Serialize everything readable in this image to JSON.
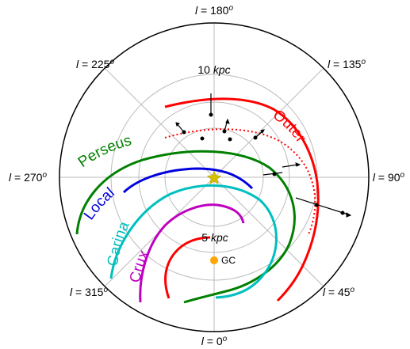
{
  "diagram": {
    "colors": {
      "outer": "#ff0000",
      "perseus": "#008000",
      "local": "#0000dd",
      "carina": "#00bfbf",
      "crux": "#bf00bf",
      "sun": "#d4c000",
      "gc": "#ffa500",
      "grid": "#bbbbbb",
      "frame": "#000000"
    },
    "longitude_labels": {
      "l0": {
        "prefix": "l",
        "value": " = 0",
        "sup": "o"
      },
      "l45": {
        "prefix": "l",
        "value": " = 45",
        "sup": "o"
      },
      "l90": {
        "prefix": "l",
        "value": " = 90",
        "sup": "o"
      },
      "l135": {
        "prefix": "l",
        "value": " = 135",
        "sup": "o"
      },
      "l180": {
        "prefix": "l",
        "value": " = 180",
        "sup": "o"
      },
      "l225": {
        "prefix": "l",
        "value": " = 225",
        "sup": "o"
      },
      "l270": {
        "prefix": "l",
        "value": " = 270",
        "sup": "o"
      },
      "l315": {
        "prefix": "l",
        "value": " = 315",
        "sup": "o"
      }
    },
    "distance_labels": {
      "r10": {
        "num": "10 ",
        "unit": "kpc"
      },
      "r5": {
        "num": "5 ",
        "unit": "kpc"
      }
    },
    "arm_labels": {
      "outer": "Outer",
      "perseus": "Perseus",
      "local": "Local",
      "carina": "Carina",
      "crux": "Crux"
    },
    "gc_label": "GC"
  }
}
